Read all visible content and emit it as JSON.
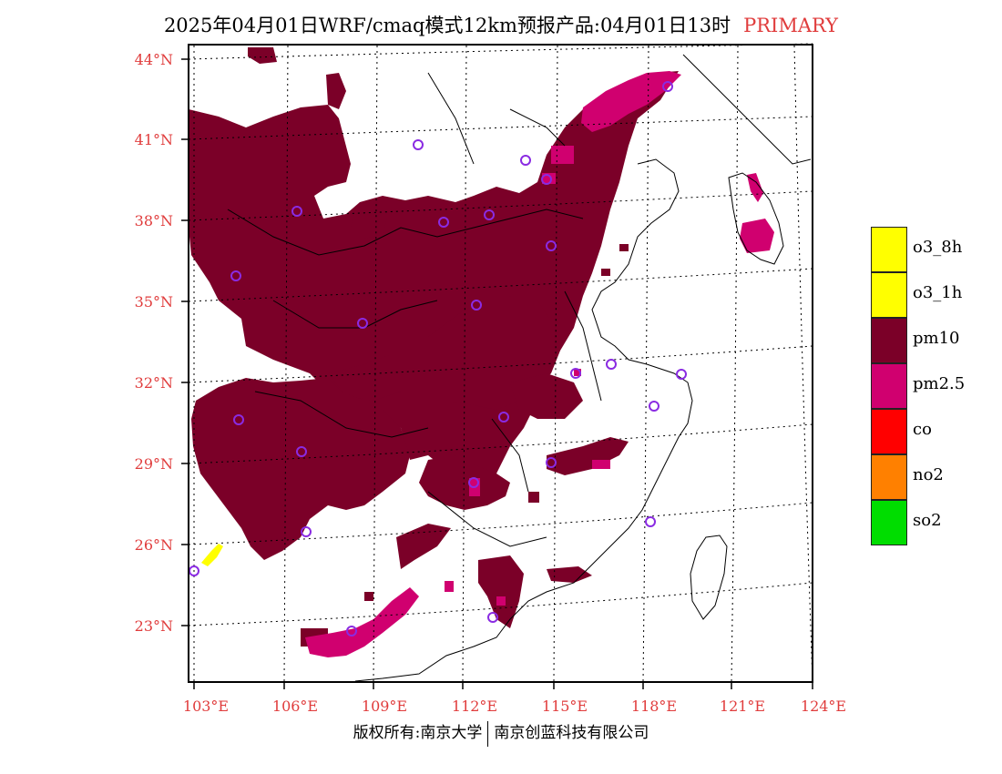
{
  "title": {
    "text": "2025年04月01日WRF/cmaq模式12km预报产品:04月01日13时",
    "tag": "PRIMARY",
    "tag_color": "#e03c3c"
  },
  "axes": {
    "lat_labels": [
      "44°N",
      "41°N",
      "38°N",
      "35°N",
      "32°N",
      "29°N",
      "26°N",
      "23°N"
    ],
    "lon_labels": [
      "103°E",
      "106°E",
      "109°E",
      "112°E",
      "115°E",
      "118°E",
      "121°E",
      "124°E"
    ],
    "label_color": "#e03c3c"
  },
  "legend": {
    "items": [
      {
        "label": "o3_8h",
        "color": "#ffff00"
      },
      {
        "label": "o3_1h",
        "color": "#ffff00"
      },
      {
        "label": "pm10",
        "color": "#7b0028"
      },
      {
        "label": "pm2.5",
        "color": "#d0006f"
      },
      {
        "label": "co",
        "color": "#ff0000"
      },
      {
        "label": "no2",
        "color": "#ff8000"
      },
      {
        "label": "so2",
        "color": "#00dd00"
      }
    ]
  },
  "footer": {
    "left": "版权所有:南京大学",
    "right": "南京创蓝科技有限公司"
  },
  "colors": {
    "pm10": "#7b0028",
    "pm25": "#d0006f",
    "o3": "#ffff00",
    "station": "#8a2be2"
  }
}
